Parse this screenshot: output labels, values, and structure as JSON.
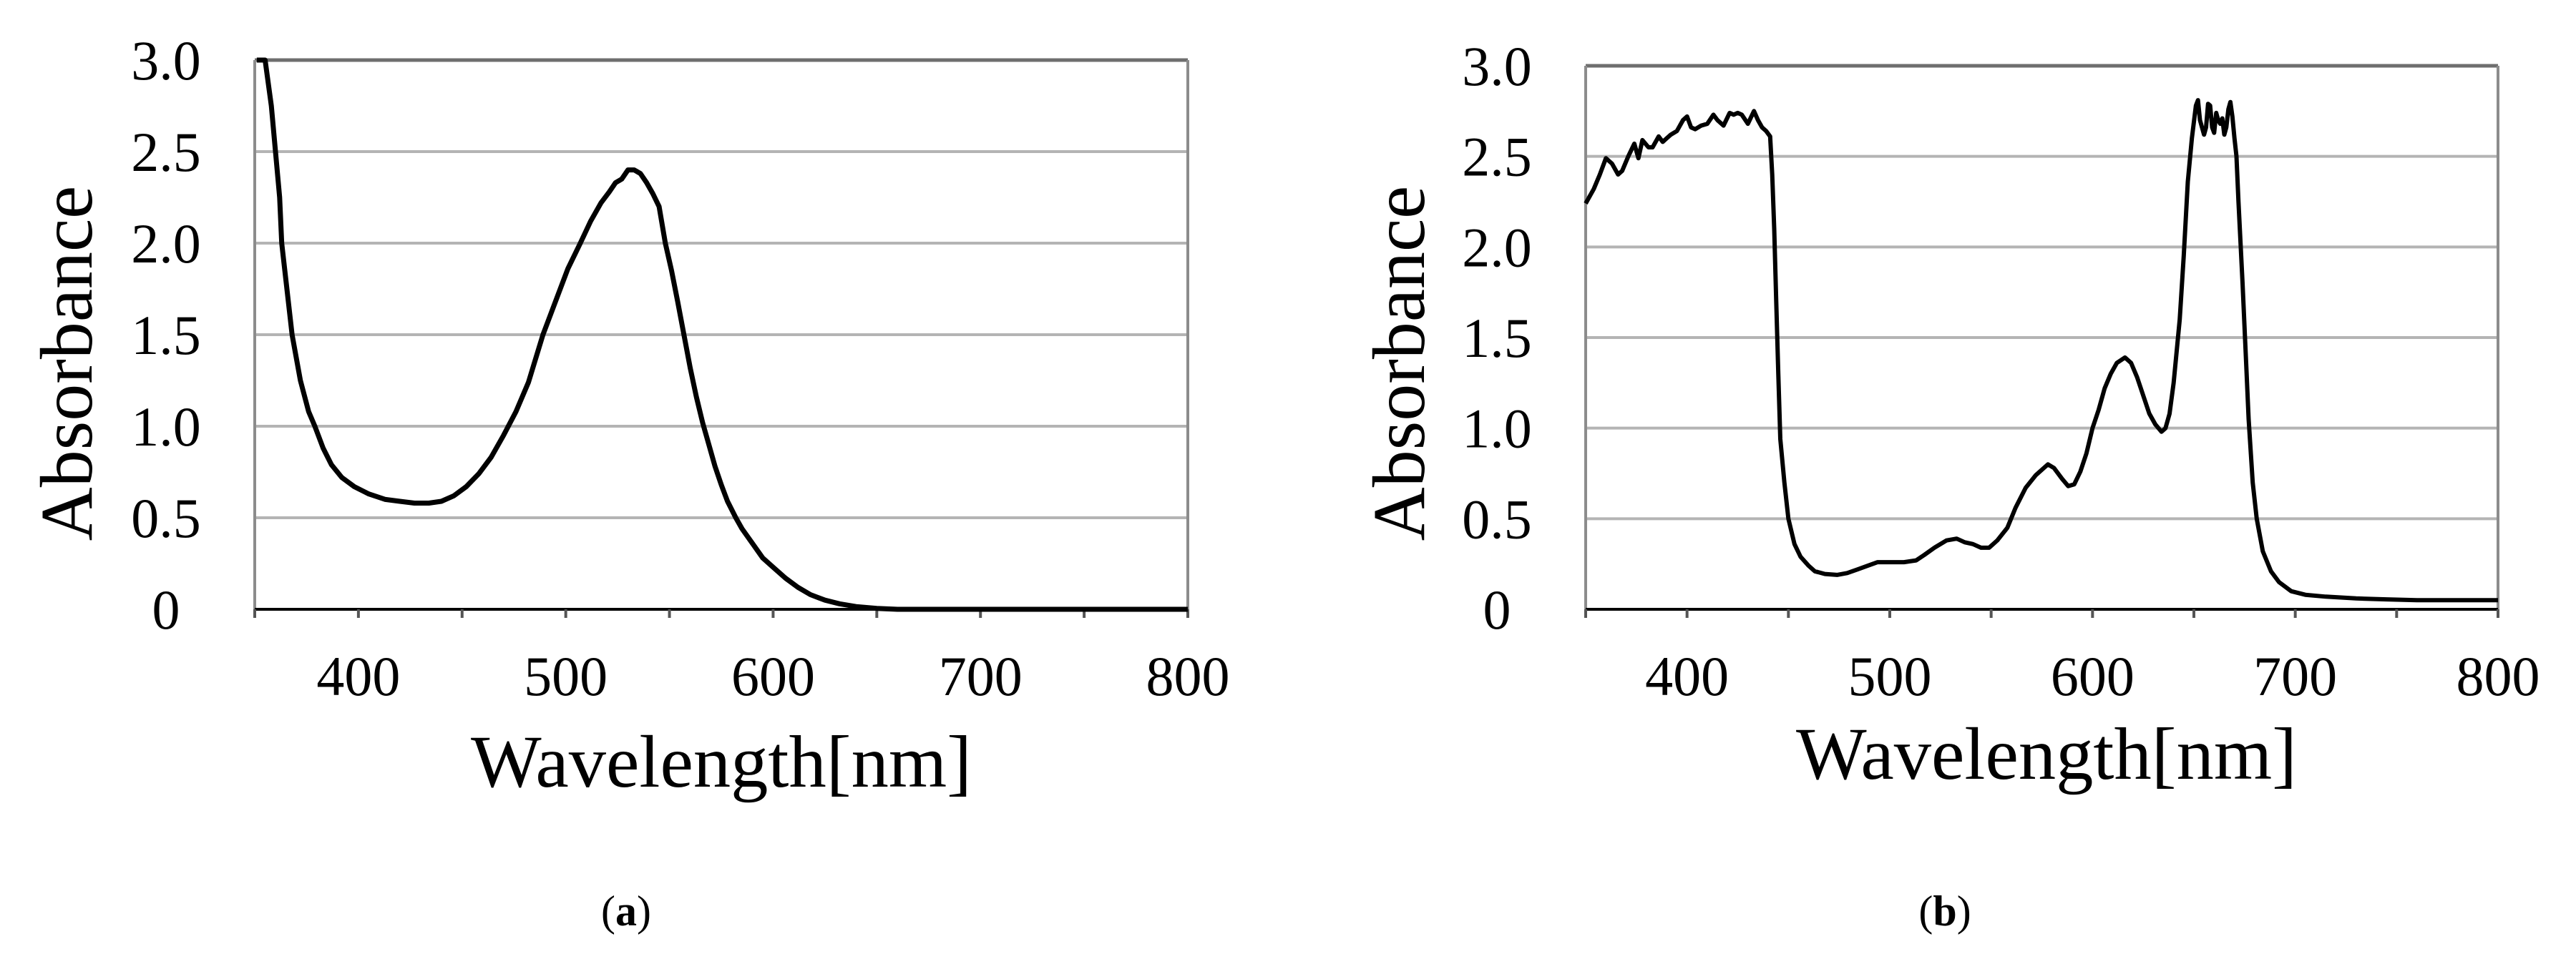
{
  "figure": {
    "panels": [
      {
        "id": "a",
        "caption_open": "(",
        "caption_letter": "a",
        "caption_close": ")"
      },
      {
        "id": "b",
        "caption_open": "(",
        "caption_letter": "b",
        "caption_close": ")"
      }
    ]
  },
  "colors": {
    "line": "#000000",
    "gridline": "#b4b4b4",
    "frame_top": "#6e6e6e",
    "y_axis": "#8c8c8c",
    "x_axis": "#000000"
  },
  "chart_data": [
    {
      "type": "line",
      "panel": "(a)",
      "title": "",
      "xlabel": "Wavelength[nm]",
      "ylabel": "Absorbance",
      "xlim": [
        350,
        800
      ],
      "ylim": [
        0,
        3.0
      ],
      "x_ticks": [
        400,
        500,
        600,
        700,
        800
      ],
      "x_minor_ticks": [
        350,
        400,
        450,
        500,
        550,
        600,
        650,
        700,
        750,
        800
      ],
      "y_ticks": [
        "0",
        "0.5",
        "1.0",
        "1.5",
        "2.0",
        "2.5",
        "3.0"
      ],
      "y_tick_values": [
        0,
        0.5,
        1.0,
        1.5,
        2.0,
        2.5,
        3.0
      ],
      "grid": "horizontal",
      "legend": "none",
      "series": [
        {
          "name": "Absorbance (a)",
          "x": [
            351,
            355,
            358,
            360,
            362,
            363,
            365,
            368,
            372,
            376,
            379,
            383,
            387,
            392,
            398,
            405,
            413,
            420,
            427,
            434,
            440,
            446,
            452,
            458,
            464,
            470,
            476,
            482,
            489,
            495,
            501,
            507,
            512,
            517,
            521,
            524,
            527,
            530,
            533,
            536,
            539,
            542,
            545,
            548,
            551,
            554,
            557,
            560,
            563,
            566,
            569,
            572,
            575,
            578,
            582,
            585,
            590,
            595,
            600,
            606,
            612,
            618,
            625,
            632,
            640,
            650,
            660,
            680,
            700,
            750,
            800
          ],
          "y": [
            3.0,
            3.0,
            2.75,
            2.5,
            2.25,
            2.0,
            1.8,
            1.5,
            1.25,
            1.08,
            1.0,
            0.88,
            0.79,
            0.72,
            0.67,
            0.63,
            0.6,
            0.59,
            0.58,
            0.58,
            0.59,
            0.62,
            0.67,
            0.74,
            0.83,
            0.95,
            1.08,
            1.24,
            1.5,
            1.68,
            1.86,
            2.0,
            2.12,
            2.22,
            2.28,
            2.33,
            2.35,
            2.4,
            2.4,
            2.38,
            2.33,
            2.27,
            2.2,
            2.0,
            1.85,
            1.68,
            1.5,
            1.32,
            1.16,
            1.02,
            0.9,
            0.78,
            0.68,
            0.59,
            0.5,
            0.44,
            0.36,
            0.28,
            0.23,
            0.17,
            0.12,
            0.08,
            0.05,
            0.03,
            0.015,
            0.005,
            0.0,
            0.0,
            0.0,
            0.0,
            0.0
          ]
        }
      ]
    },
    {
      "type": "line",
      "panel": "(b)",
      "title": "",
      "xlabel": "Wavelength[nm]",
      "ylabel": "Absorbance",
      "xlim": [
        350,
        800
      ],
      "ylim": [
        0,
        3.0
      ],
      "x_ticks": [
        400,
        500,
        600,
        700,
        800
      ],
      "x_minor_ticks": [
        350,
        400,
        450,
        500,
        550,
        600,
        650,
        700,
        750,
        800
      ],
      "y_ticks": [
        "0",
        "0.5",
        "1.0",
        "1.5",
        "2.0",
        "2.5",
        "3.0"
      ],
      "y_tick_values": [
        0,
        0.5,
        1.0,
        1.5,
        2.0,
        2.5,
        3.0
      ],
      "grid": "horizontal",
      "legend": "none",
      "series": [
        {
          "name": "Absorbance (b)",
          "x": [
            350,
            354,
            357,
            360,
            363,
            366,
            368,
            371,
            374,
            376,
            378,
            381,
            383,
            386,
            388,
            390,
            392,
            395,
            398,
            400,
            402,
            404,
            407,
            410,
            413,
            415,
            418,
            421,
            423,
            425,
            427,
            430,
            433,
            435,
            437,
            439,
            441,
            442,
            443,
            444,
            445,
            446,
            448,
            450,
            453,
            456,
            460,
            463,
            468,
            474,
            479,
            484,
            489,
            494,
            500,
            507,
            513,
            517,
            522,
            528,
            533,
            537,
            541,
            545,
            549,
            553,
            558,
            562,
            567,
            572,
            578,
            581,
            585,
            588,
            591,
            594,
            597,
            600,
            603,
            606,
            609,
            612,
            616,
            619,
            622,
            625,
            628,
            631,
            634,
            636,
            638,
            640,
            643,
            645,
            647,
            649,
            651,
            652,
            653,
            655,
            656,
            657,
            658,
            659,
            660,
            661,
            662,
            663,
            664,
            665,
            666,
            667,
            668,
            669,
            670,
            671,
            672,
            674,
            676,
            677,
            679,
            681,
            684,
            688,
            692,
            698,
            705,
            715,
            730,
            745,
            760,
            780,
            800
          ],
          "y": [
            2.24,
            2.32,
            2.4,
            2.49,
            2.46,
            2.4,
            2.42,
            2.5,
            2.57,
            2.49,
            2.59,
            2.55,
            2.55,
            2.61,
            2.58,
            2.6,
            2.62,
            2.64,
            2.7,
            2.72,
            2.66,
            2.65,
            2.67,
            2.68,
            2.73,
            2.7,
            2.67,
            2.74,
            2.73,
            2.74,
            2.73,
            2.68,
            2.75,
            2.7,
            2.66,
            2.64,
            2.61,
            2.4,
            2.1,
            1.7,
            1.3,
            0.94,
            0.7,
            0.5,
            0.36,
            0.29,
            0.24,
            0.21,
            0.195,
            0.19,
            0.2,
            0.22,
            0.24,
            0.26,
            0.26,
            0.26,
            0.27,
            0.3,
            0.34,
            0.38,
            0.39,
            0.37,
            0.36,
            0.34,
            0.34,
            0.38,
            0.45,
            0.56,
            0.67,
            0.74,
            0.8,
            0.78,
            0.72,
            0.68,
            0.69,
            0.76,
            0.86,
            1.0,
            1.1,
            1.22,
            1.3,
            1.36,
            1.39,
            1.36,
            1.28,
            1.18,
            1.08,
            1.02,
            0.98,
            1.0,
            1.08,
            1.25,
            1.6,
            1.95,
            2.36,
            2.6,
            2.78,
            2.81,
            2.7,
            2.62,
            2.66,
            2.79,
            2.78,
            2.66,
            2.63,
            2.74,
            2.7,
            2.68,
            2.71,
            2.62,
            2.66,
            2.76,
            2.8,
            2.72,
            2.6,
            2.5,
            2.25,
            1.8,
            1.3,
            1.05,
            0.7,
            0.5,
            0.32,
            0.21,
            0.15,
            0.1,
            0.08,
            0.07,
            0.06,
            0.055,
            0.05,
            0.05,
            0.05
          ]
        }
      ]
    }
  ]
}
